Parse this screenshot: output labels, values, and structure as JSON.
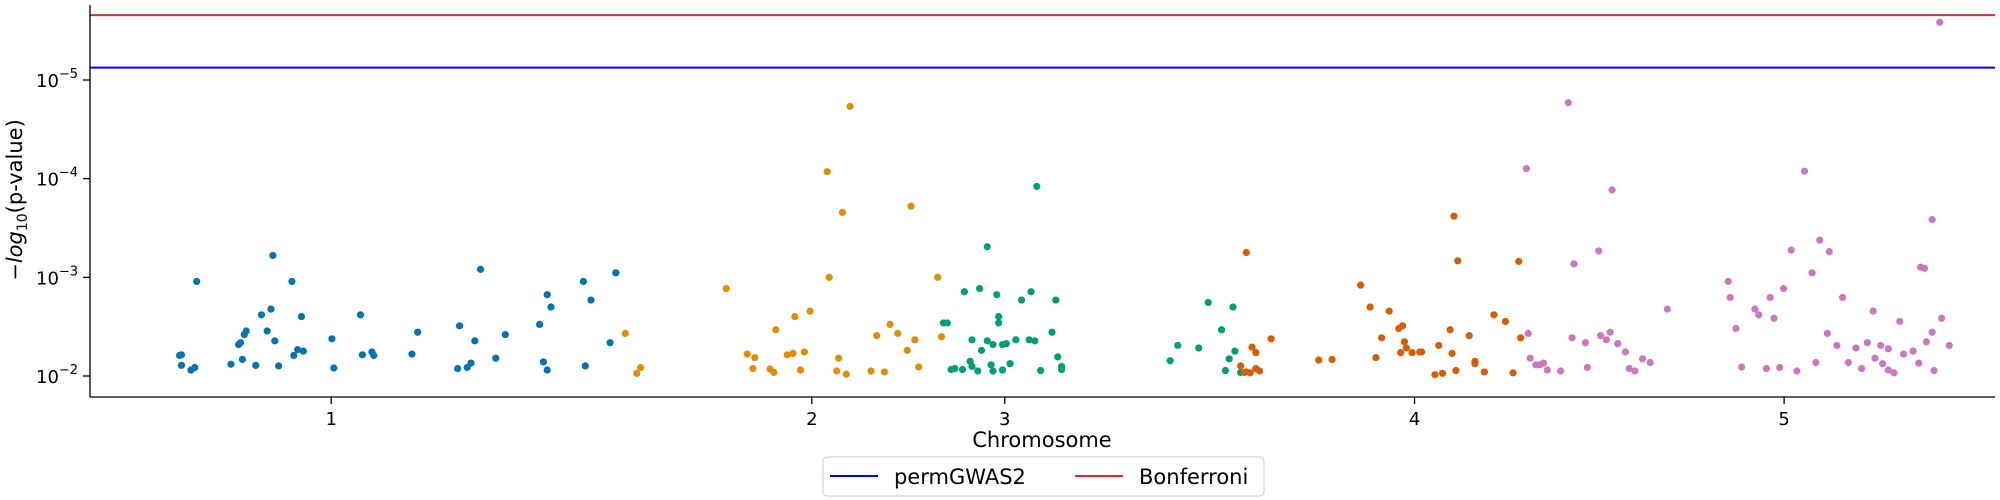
{
  "chart_data": {
    "type": "scatter",
    "title": "",
    "xlabel": "Chromosome",
    "ylabel": "−log10(p-value)",
    "y_scale": "log-inverted",
    "y_ticks": [
      {
        "value": 1e-05,
        "mant": "10",
        "exp": "−5"
      },
      {
        "value": 0.0001,
        "mant": "10",
        "exp": "−4"
      },
      {
        "value": 0.001,
        "mant": "10",
        "exp": "−3"
      },
      {
        "value": 0.01,
        "mant": "10",
        "exp": "−2"
      }
    ],
    "x_ticks": [
      {
        "label": "1",
        "position": 0.1266
      },
      {
        "label": "2",
        "position": 0.3789
      },
      {
        "label": "3",
        "position": 0.4802
      },
      {
        "label": "4",
        "position": 0.6953
      },
      {
        "label": "5",
        "position": 0.8893
      }
    ],
    "grid": false,
    "legend_position": "bottom-center",
    "thresholds": [
      {
        "name": "permGWAS2",
        "value": 7.5e-06,
        "color": "#0000ff"
      },
      {
        "name": "Bonferroni",
        "value": 2.2e-06,
        "color": "#e8272a"
      }
    ],
    "series": [
      {
        "chromosome": "1",
        "color": "#0173b2",
        "points": [
          [
            0.047,
            0.0062
          ],
          [
            0.048,
            0.0061
          ],
          [
            0.048,
            0.0078
          ],
          [
            0.053,
            0.0087
          ],
          [
            0.055,
            0.0082
          ],
          [
            0.056,
            0.0011
          ],
          [
            0.074,
            0.0076
          ],
          [
            0.078,
            0.0048
          ],
          [
            0.079,
            0.0046
          ],
          [
            0.08,
            0.0068
          ],
          [
            0.081,
            0.0038
          ],
          [
            0.082,
            0.0035
          ],
          [
            0.087,
            0.0078
          ],
          [
            0.09,
            0.0024
          ],
          [
            0.093,
            0.0035
          ],
          [
            0.095,
            0.0021
          ],
          [
            0.096,
            0.0006
          ],
          [
            0.097,
            0.0044
          ],
          [
            0.099,
            0.0079
          ],
          [
            0.106,
            0.0011
          ],
          [
            0.107,
            0.0062
          ],
          [
            0.109,
            0.0054
          ],
          [
            0.111,
            0.0025
          ],
          [
            0.112,
            0.0056
          ],
          [
            0.127,
            0.0042
          ],
          [
            0.128,
            0.0083
          ],
          [
            0.142,
            0.0024
          ],
          [
            0.143,
            0.0061
          ],
          [
            0.148,
            0.0057
          ],
          [
            0.149,
            0.0062
          ],
          [
            0.169,
            0.006
          ],
          [
            0.172,
            0.0036
          ],
          [
            0.193,
            0.0084
          ],
          [
            0.194,
            0.0031
          ],
          [
            0.198,
            0.0082
          ],
          [
            0.2,
            0.0074
          ],
          [
            0.202,
            0.0044
          ],
          [
            0.205,
            0.00083
          ],
          [
            0.213,
            0.0066
          ],
          [
            0.218,
            0.0038
          ],
          [
            0.236,
            0.003
          ],
          [
            0.238,
            0.0072
          ],
          [
            0.24,
            0.0015
          ],
          [
            0.24,
            0.0087
          ],
          [
            0.242,
            0.002
          ],
          [
            0.259,
            0.0011
          ],
          [
            0.26,
            0.0079
          ],
          [
            0.263,
            0.0017
          ],
          [
            0.273,
            0.0046
          ],
          [
            0.276,
            0.0009
          ]
        ]
      },
      {
        "chromosome": "2",
        "color": "#de8f05",
        "points": [
          [
            0.281,
            0.0037
          ],
          [
            0.287,
            0.0094
          ],
          [
            0.289,
            0.0082
          ],
          [
            0.334,
            0.0013
          ],
          [
            0.345,
            0.006
          ],
          [
            0.348,
            0.0084
          ],
          [
            0.349,
            0.0065
          ],
          [
            0.357,
            0.0085
          ],
          [
            0.359,
            0.0092
          ],
          [
            0.36,
            0.0034
          ],
          [
            0.366,
            0.0061
          ],
          [
            0.369,
            0.0059
          ],
          [
            0.37,
            0.0025
          ],
          [
            0.373,
            0.0087
          ],
          [
            0.375,
            0.0057
          ],
          [
            0.378,
            0.0022
          ],
          [
            0.388,
            0.001
          ],
          [
            0.387,
            8.5e-05
          ],
          [
            0.392,
            0.0089
          ],
          [
            0.393,
            0.0066
          ],
          [
            0.395,
            0.00022
          ],
          [
            0.397,
            0.0096
          ],
          [
            0.399,
            1.85e-05
          ],
          [
            0.41,
            0.0089
          ],
          [
            0.413,
            0.0039
          ],
          [
            0.417,
            0.0091
          ],
          [
            0.42,
            0.003
          ],
          [
            0.424,
            0.0037
          ],
          [
            0.429,
            0.0055
          ],
          [
            0.431,
            0.00019
          ],
          [
            0.433,
            0.0043
          ],
          [
            0.435,
            0.0081
          ],
          [
            0.445,
            0.001
          ],
          [
            0.447,
            0.004
          ]
        ]
      },
      {
        "chromosome": "3",
        "color": "#029e73",
        "points": [
          [
            0.448,
            0.0029
          ],
          [
            0.45,
            0.0029
          ],
          [
            0.452,
            0.0086
          ],
          [
            0.454,
            0.0084
          ],
          [
            0.458,
            0.0086
          ],
          [
            0.459,
            0.0014
          ],
          [
            0.462,
            0.0071
          ],
          [
            0.463,
            0.0043
          ],
          [
            0.463,
            0.008
          ],
          [
            0.466,
            0.0089
          ],
          [
            0.467,
            0.0013
          ],
          [
            0.468,
            0.0055
          ],
          [
            0.471,
            0.00049
          ],
          [
            0.471,
            0.0044
          ],
          [
            0.473,
            0.0077
          ],
          [
            0.474,
            0.0089
          ],
          [
            0.474,
            0.0048
          ],
          [
            0.476,
            0.0015
          ],
          [
            0.477,
            0.0025
          ],
          [
            0.477,
            0.0029
          ],
          [
            0.479,
            0.0087
          ],
          [
            0.479,
            0.0048
          ],
          [
            0.481,
            0.0047
          ],
          [
            0.483,
            0.0075
          ],
          [
            0.486,
            0.0043
          ],
          [
            0.489,
            0.0017
          ],
          [
            0.493,
            0.0043
          ],
          [
            0.494,
            0.0014
          ],
          [
            0.496,
            0.0044
          ],
          [
            0.497,
            0.00012
          ],
          [
            0.499,
            0.0088
          ],
          [
            0.505,
            0.0036
          ],
          [
            0.507,
            0.0017
          ],
          [
            0.508,
            0.0064
          ],
          [
            0.51,
            0.008
          ],
          [
            0.51,
            0.0086
          ],
          [
            0.567,
            0.007
          ],
          [
            0.571,
            0.0049
          ],
          [
            0.582,
            0.0052
          ],
          [
            0.587,
            0.0018
          ],
          [
            0.594,
            0.0034
          ],
          [
            0.596,
            0.0088
          ],
          [
            0.598,
            0.0067
          ],
          [
            0.6,
            0.002
          ],
          [
            0.601,
            0.0056
          ],
          [
            0.604,
            0.0092
          ]
        ]
      },
      {
        "chromosome": "4",
        "color": "#d55e00",
        "points": [
          [
            0.604,
            0.0079
          ],
          [
            0.606,
            0.0092
          ],
          [
            0.607,
            0.00056
          ],
          [
            0.607,
            0.0091
          ],
          [
            0.609,
            0.0093
          ],
          [
            0.61,
            0.0051
          ],
          [
            0.612,
            0.0084
          ],
          [
            0.612,
            0.0058
          ],
          [
            0.614,
            0.0089
          ],
          [
            0.62,
            0.0042
          ],
          [
            0.645,
            0.0069
          ],
          [
            0.652,
            0.0068
          ],
          [
            0.667,
            0.0012
          ],
          [
            0.672,
            0.002
          ],
          [
            0.675,
            0.0065
          ],
          [
            0.678,
            0.0041
          ],
          [
            0.682,
            0.0022
          ],
          [
            0.687,
            0.0033
          ],
          [
            0.688,
            0.0058
          ],
          [
            0.689,
            0.0031
          ],
          [
            0.69,
            0.0045
          ],
          [
            0.691,
            0.0052
          ],
          [
            0.694,
            0.0058
          ],
          [
            0.698,
            0.0057
          ],
          [
            0.699,
            0.0057
          ],
          [
            0.706,
            0.0097
          ],
          [
            0.708,
            0.0049
          ],
          [
            0.71,
            0.0094
          ],
          [
            0.714,
            0.0034
          ],
          [
            0.715,
            0.0059
          ],
          [
            0.716,
            0.00024
          ],
          [
            0.717,
            0.0088
          ],
          [
            0.718,
            0.00068
          ],
          [
            0.724,
            0.0039
          ],
          [
            0.727,
            0.0075
          ],
          [
            0.727,
            0.0071
          ],
          [
            0.732,
            0.0091
          ],
          [
            0.737,
            0.0024
          ],
          [
            0.743,
            0.0028
          ],
          [
            0.747,
            0.0093
          ],
          [
            0.75,
            0.00069
          ],
          [
            0.751,
            0.0041
          ]
        ]
      },
      {
        "chromosome": "5",
        "color": "#cc78bc",
        "points": [
          [
            0.754,
            7.9e-05
          ],
          [
            0.755,
            0.0037
          ],
          [
            0.756,
            0.0066
          ],
          [
            0.759,
            0.0077
          ],
          [
            0.761,
            0.0077
          ],
          [
            0.763,
            0.0074
          ],
          [
            0.765,
            0.0087
          ],
          [
            0.772,
            0.0089
          ],
          [
            0.776,
            1.7e-05
          ],
          [
            0.778,
            0.0041
          ],
          [
            0.779,
            0.00073
          ],
          [
            0.785,
            0.0046
          ],
          [
            0.786,
            0.0082
          ],
          [
            0.792,
            0.00054
          ],
          [
            0.793,
            0.0039
          ],
          [
            0.796,
            0.0043
          ],
          [
            0.798,
            0.0036
          ],
          [
            0.799,
            0.00013
          ],
          [
            0.802,
            0.0047
          ],
          [
            0.806,
            0.0057
          ],
          [
            0.808,
            0.0084
          ],
          [
            0.811,
            0.0089
          ],
          [
            0.815,
            0.0067
          ],
          [
            0.819,
            0.0073
          ],
          [
            0.828,
            0.0021
          ],
          [
            0.86,
            0.0011
          ],
          [
            0.861,
            0.0016
          ],
          [
            0.864,
            0.0033
          ],
          [
            0.867,
            0.0081
          ],
          [
            0.874,
            0.0021
          ],
          [
            0.876,
            0.0024
          ],
          [
            0.88,
            0.0084
          ],
          [
            0.882,
            0.0016
          ],
          [
            0.884,
            0.0026
          ],
          [
            0.887,
            0.0082
          ],
          [
            0.889,
            0.0013
          ],
          [
            0.893,
            0.00053
          ],
          [
            0.896,
            0.0089
          ],
          [
            0.9,
            8.4e-05
          ],
          [
            0.904,
            0.0009
          ],
          [
            0.906,
            0.0073
          ],
          [
            0.908,
            0.00042
          ],
          [
            0.912,
            0.0037
          ],
          [
            0.913,
            0.00055
          ],
          [
            0.917,
            0.0049
          ],
          [
            0.92,
            0.0016
          ],
          [
            0.923,
            0.0073
          ],
          [
            0.927,
            0.0052
          ],
          [
            0.93,
            0.0084
          ],
          [
            0.933,
            0.0046
          ],
          [
            0.936,
            0.0022
          ],
          [
            0.937,
            0.0066
          ],
          [
            0.94,
            0.0049
          ],
          [
            0.941,
            0.0075
          ],
          [
            0.944,
            0.0053
          ],
          [
            0.944,
            0.0087
          ],
          [
            0.947,
            0.0093
          ],
          [
            0.95,
            0.0028
          ],
          [
            0.952,
            0.006
          ],
          [
            0.957,
            0.0056
          ],
          [
            0.96,
            0.0074
          ],
          [
            0.961,
            0.00079
          ],
          [
            0.963,
            0.00081
          ],
          [
            0.964,
            0.0045
          ],
          [
            0.967,
            0.0036
          ],
          [
            0.967,
            0.00026
          ],
          [
            0.968,
            0.0088
          ],
          [
            0.971,
            2.6e-06
          ],
          [
            0.972,
            0.0026
          ],
          [
            0.976,
            0.0049
          ]
        ]
      }
    ]
  }
}
